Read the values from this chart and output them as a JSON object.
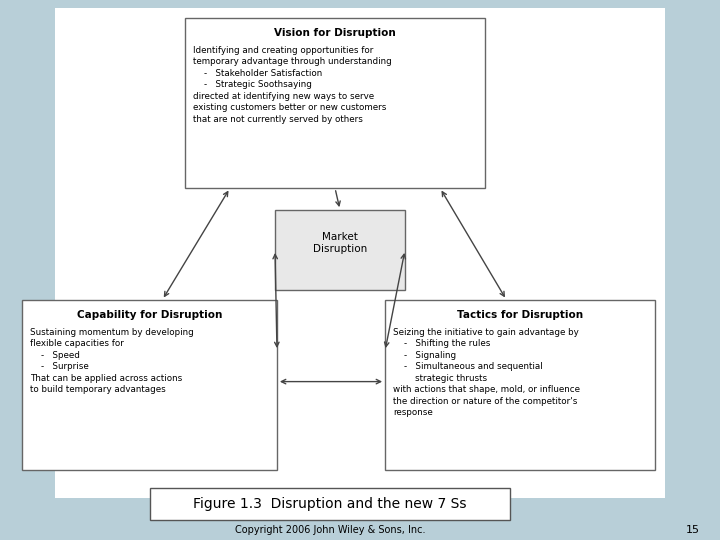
{
  "bg_color": "#b8cfd8",
  "white": "#ffffff",
  "black": "#000000",
  "figure_caption": "Figure 1.3  Disruption and the new 7 Ss",
  "copyright": "Copyright 2006 John Wiley & Sons, Inc.",
  "page_num": "15",
  "vision_title": "Vision for Disruption",
  "vision_body": "Identifying and creating opportunities for\ntemporary advantage through understanding\n    -   Stakeholder Satisfaction\n    -   Strategic Soothsaying\ndirected at identifying new ways to serve\nexisting customers better or new customers\nthat are not currently served by others",
  "market_title": "Market\nDisruption",
  "capability_title": "Capability for Disruption",
  "capability_body": "Sustaining momentum by developing\nflexible capacities for\n    -   Speed\n    -   Surprise\nThat can be applied across actions\nto build temporary advantages",
  "tactics_title": "Tactics for Disruption",
  "tactics_body": "Seizing the initiative to gain advantage by\n    -   Shifting the rules\n    -   Signaling\n    -   Simultaneous and sequential\n        strategic thrusts\nwith actions that shape, mold, or influence\nthe direction or nature of the competitor's\nresponse",
  "arrow_color": "#444444",
  "box_edge_color": "#666666",
  "market_bg": "#e8e8e8"
}
